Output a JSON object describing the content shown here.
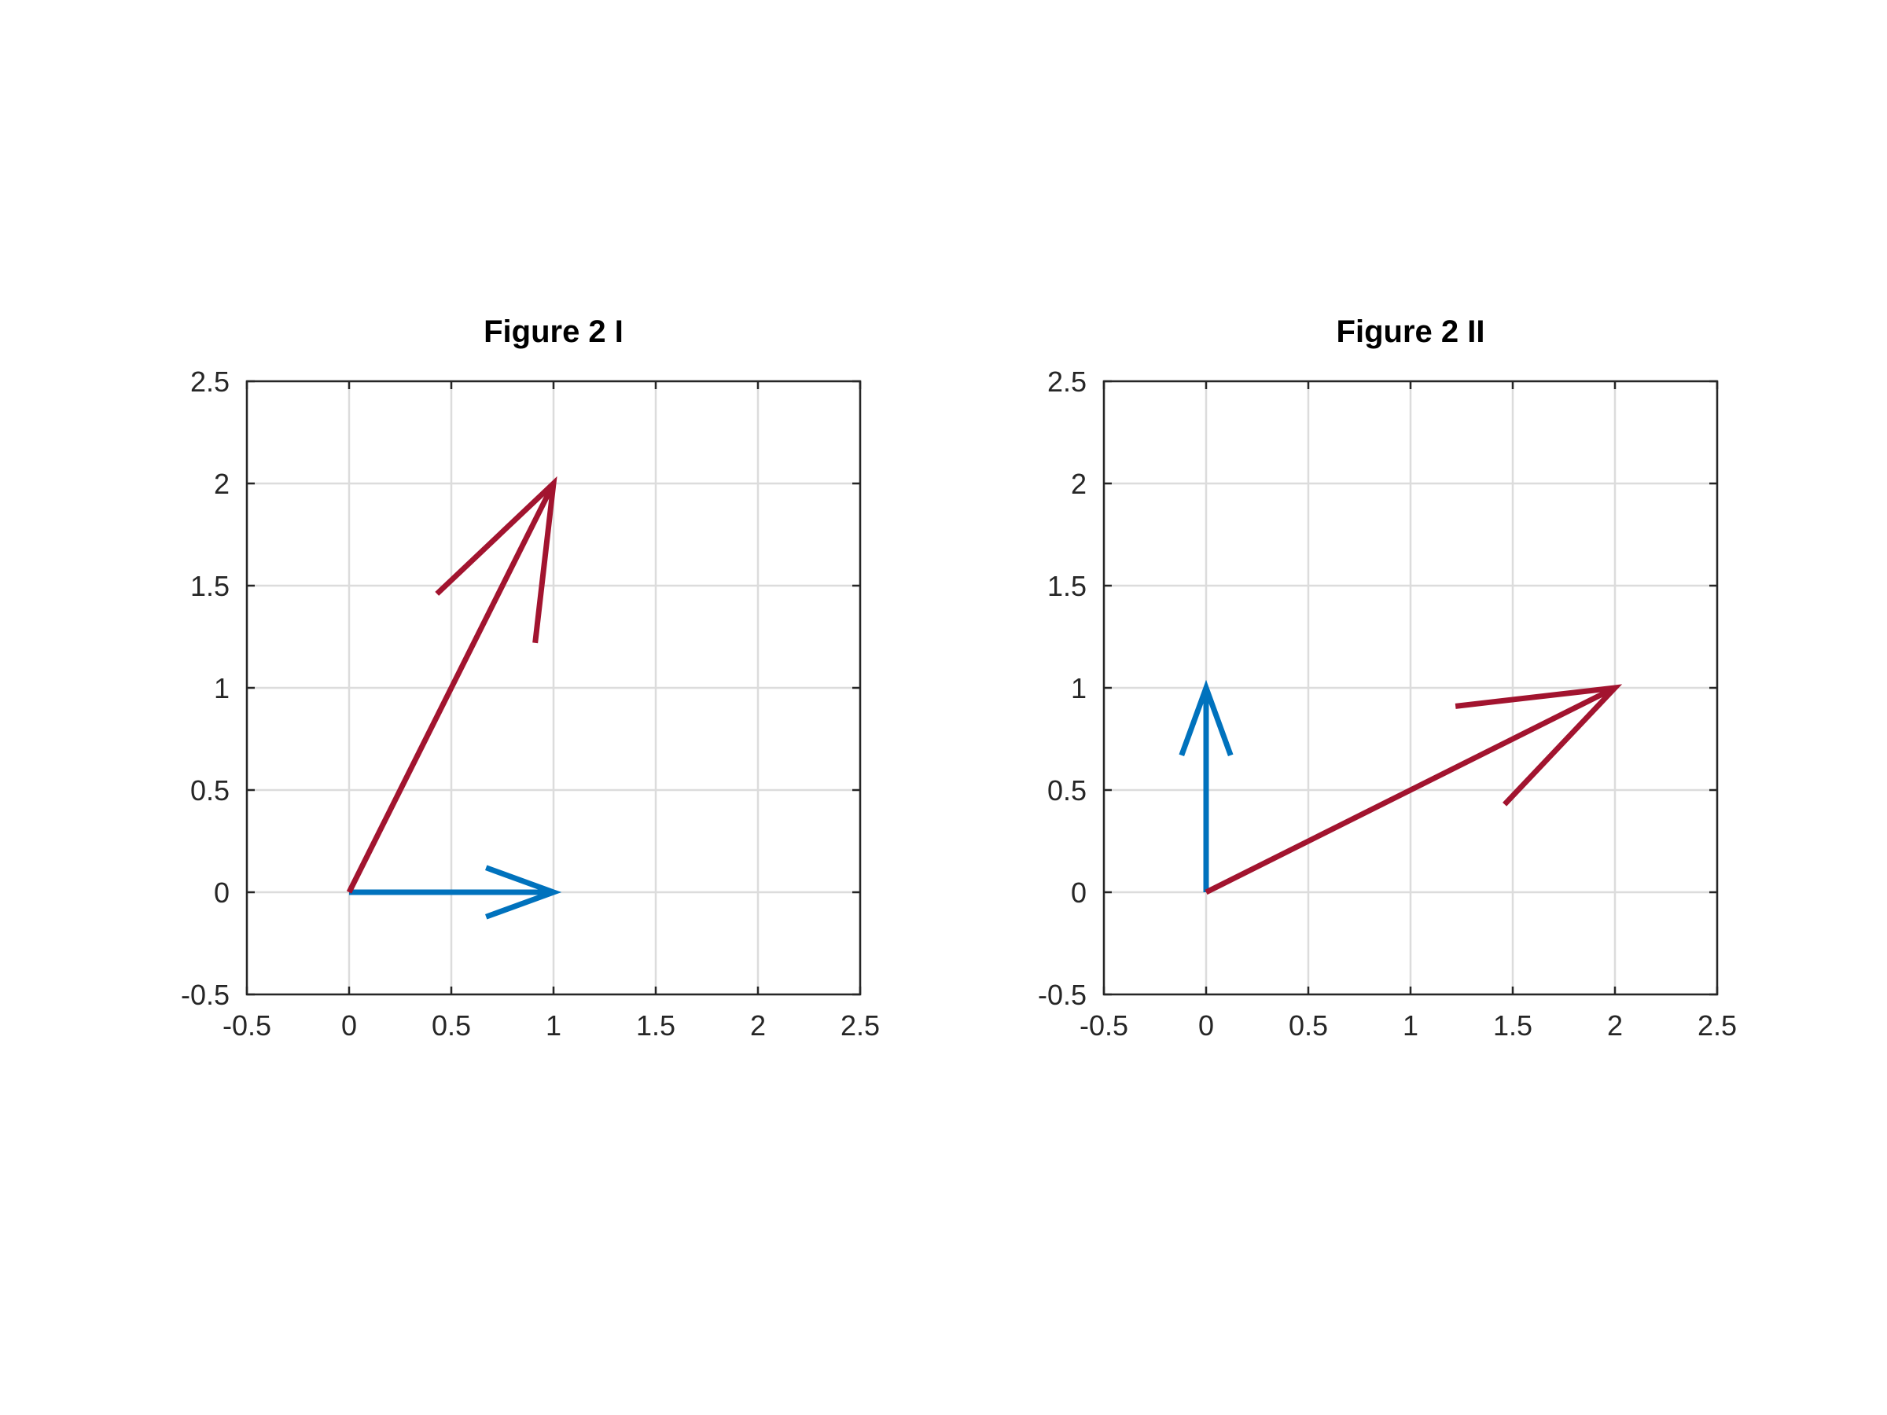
{
  "chart_data": [
    {
      "type": "quiver",
      "title": "Figure 2 I",
      "xlabel": "",
      "ylabel": "",
      "xlim": [
        -0.5,
        2.5
      ],
      "ylim": [
        -0.5,
        2.5
      ],
      "xticks": [
        "-0.5",
        "0",
        "0.5",
        "1",
        "1.5",
        "2",
        "2.5"
      ],
      "yticks": [
        "-0.5",
        "0",
        "0.5",
        "1",
        "1.5",
        "2",
        "2.5"
      ],
      "grid": true,
      "vectors": [
        {
          "origin": [
            0,
            0
          ],
          "tip": [
            1,
            0
          ],
          "color": "#0072BD"
        },
        {
          "origin": [
            0,
            0
          ],
          "tip": [
            1,
            2
          ],
          "color": "#A2142F"
        }
      ]
    },
    {
      "type": "quiver",
      "title": "Figure 2 II",
      "xlabel": "",
      "ylabel": "",
      "xlim": [
        -0.5,
        2.5
      ],
      "ylim": [
        -0.5,
        2.5
      ],
      "xticks": [
        "-0.5",
        "0",
        "0.5",
        "1",
        "1.5",
        "2",
        "2.5"
      ],
      "yticks": [
        "-0.5",
        "0",
        "0.5",
        "1",
        "1.5",
        "2",
        "2.5"
      ],
      "grid": true,
      "vectors": [
        {
          "origin": [
            0,
            0
          ],
          "tip": [
            0,
            1
          ],
          "color": "#0072BD"
        },
        {
          "origin": [
            0,
            0
          ],
          "tip": [
            2,
            1
          ],
          "color": "#A2142F"
        }
      ]
    }
  ]
}
